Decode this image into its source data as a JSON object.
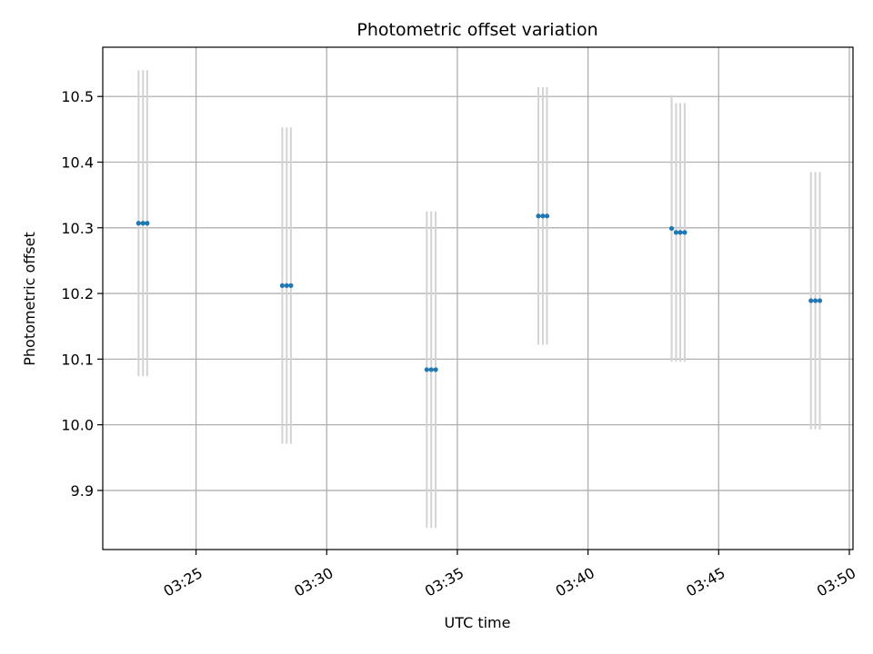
{
  "chart_data": {
    "type": "scatter",
    "title": "Photometric offset variation",
    "xlabel": "UTC time",
    "ylabel": "Photometric offset",
    "x_ticks": [
      "03:25",
      "03:30",
      "03:35",
      "03:40",
      "03:45",
      "03:50"
    ],
    "x_tick_minutes": [
      25,
      30,
      35,
      40,
      45,
      50
    ],
    "xlim_minutes": [
      21.43,
      50.14
    ],
    "xlim": [
      "03:21:26",
      "03:50:08"
    ],
    "y_ticks": [
      "9.9",
      "10.0",
      "10.1",
      "10.2",
      "10.3",
      "10.4",
      "10.5"
    ],
    "ylim": [
      9.81,
      10.575
    ],
    "grid": true,
    "colors": {
      "points": "#1f77b4",
      "error_bars": "#d3d3d3",
      "grid": "#b0b0b0",
      "axes": "#000000"
    },
    "series": [
      {
        "points": [
          {
            "x": "03:22:48",
            "x_minutes": 22.8,
            "y": 10.307,
            "err": 0.233
          },
          {
            "x": "03:22:58",
            "x_minutes": 22.97,
            "y": 10.307,
            "err": 0.233
          },
          {
            "x": "03:23:08",
            "x_minutes": 23.13,
            "y": 10.307,
            "err": 0.233
          },
          {
            "x": "03:28:18",
            "x_minutes": 28.3,
            "y": 10.212,
            "err": 0.241
          },
          {
            "x": "03:28:28",
            "x_minutes": 28.47,
            "y": 10.212,
            "err": 0.241
          },
          {
            "x": "03:28:38",
            "x_minutes": 28.63,
            "y": 10.212,
            "err": 0.241
          },
          {
            "x": "03:33:50",
            "x_minutes": 33.83,
            "y": 10.084,
            "err": 0.241
          },
          {
            "x": "03:34:00",
            "x_minutes": 34.0,
            "y": 10.084,
            "err": 0.241
          },
          {
            "x": "03:34:10",
            "x_minutes": 34.17,
            "y": 10.084,
            "err": 0.241
          },
          {
            "x": "03:38:06",
            "x_minutes": 38.1,
            "y": 10.318,
            "err": 0.196
          },
          {
            "x": "03:38:16",
            "x_minutes": 38.27,
            "y": 10.318,
            "err": 0.196
          },
          {
            "x": "03:38:26",
            "x_minutes": 38.43,
            "y": 10.318,
            "err": 0.196
          },
          {
            "x": "03:43:12",
            "x_minutes": 43.2,
            "y": 10.299,
            "err": 0.203
          },
          {
            "x": "03:43:22",
            "x_minutes": 43.37,
            "y": 10.293,
            "err": 0.197
          },
          {
            "x": "03:43:32",
            "x_minutes": 43.53,
            "y": 10.293,
            "err": 0.197
          },
          {
            "x": "03:43:42",
            "x_minutes": 43.7,
            "y": 10.293,
            "err": 0.197
          },
          {
            "x": "03:48:32",
            "x_minutes": 48.53,
            "y": 10.189,
            "err": 0.196
          },
          {
            "x": "03:48:42",
            "x_minutes": 48.7,
            "y": 10.189,
            "err": 0.196
          },
          {
            "x": "03:48:52",
            "x_minutes": 48.87,
            "y": 10.189,
            "err": 0.196
          }
        ]
      }
    ]
  }
}
